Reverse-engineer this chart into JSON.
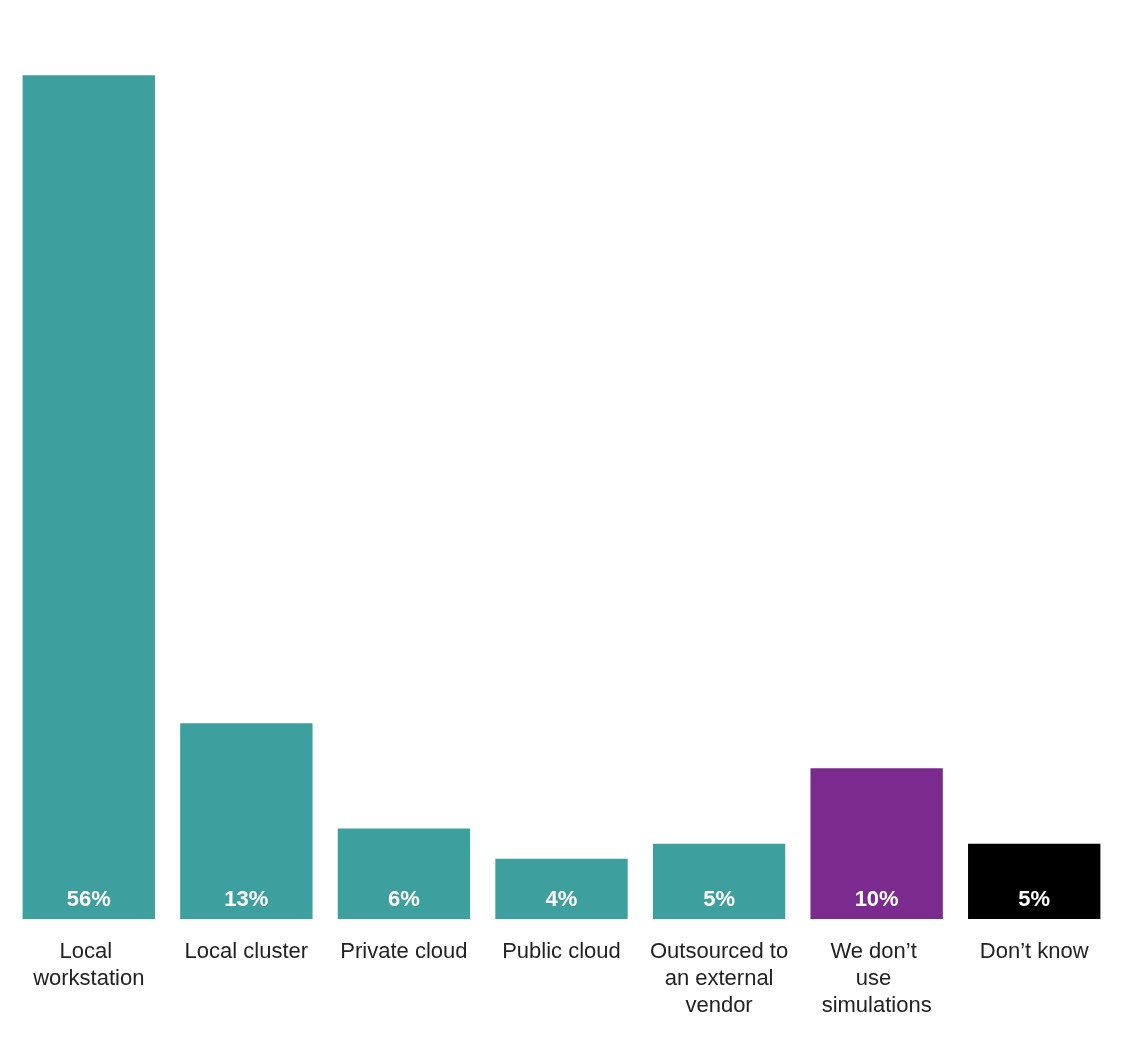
{
  "chart_data": {
    "type": "bar",
    "categories": [
      "Local workstation",
      "Local cluster",
      "Private cloud",
      "Public cloud",
      "Outsourced to an external vendor",
      "We don’t use simulations",
      "Don’t know"
    ],
    "values": [
      56,
      13,
      6,
      4,
      5,
      10,
      5
    ],
    "colors": [
      "#3e9f9f",
      "#3e9f9f",
      "#3e9f9f",
      "#3e9f9f",
      "#3e9f9f",
      "#7b2a8e",
      "#000000"
    ],
    "value_labels": [
      "56%",
      "13%",
      "6%",
      "4%",
      "5%",
      "10%",
      "5%"
    ]
  }
}
